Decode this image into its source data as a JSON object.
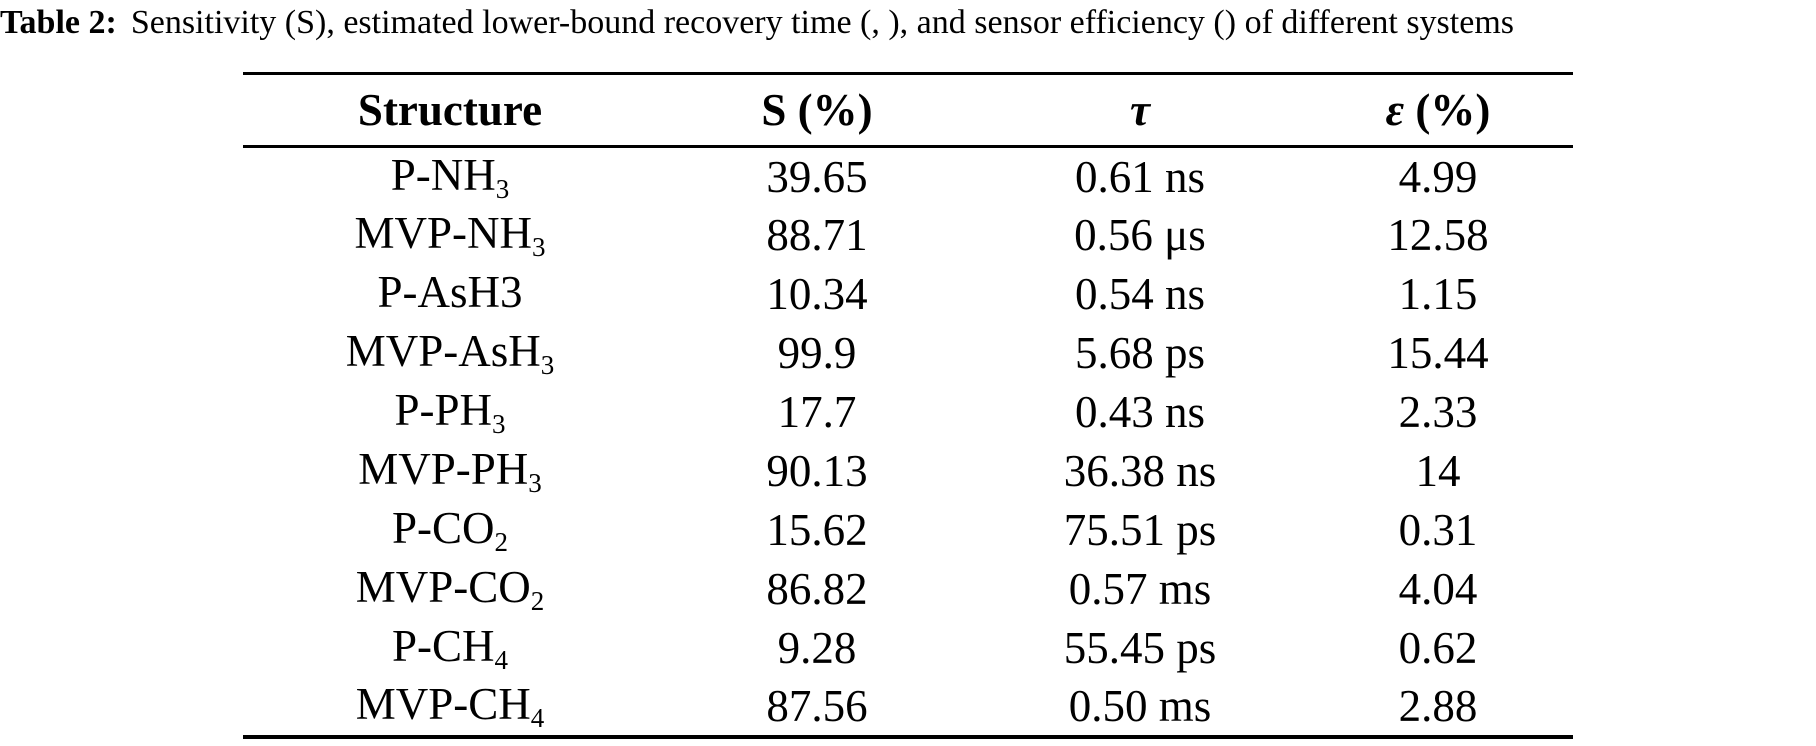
{
  "caption": {
    "label": "Table 2:",
    "text": "Sensitivity (S), estimated lower-bound recovery time (, ), and sensor efficiency () of different systems"
  },
  "table": {
    "headers": {
      "structure": "Structure",
      "s": "S (%)",
      "tau": "τ",
      "eps_symbol": "ε",
      "eps_unit": "(%)"
    },
    "rows": [
      {
        "structure_main": "P-NH",
        "structure_sub": "3",
        "s": "39.65",
        "tau": "0.61 ns",
        "eps": "4.99"
      },
      {
        "structure_main": "MVP-NH",
        "structure_sub": "3",
        "s": "88.71",
        "tau": "0.56 μs",
        "eps": "12.58"
      },
      {
        "structure_main": "P-AsH3",
        "structure_sub": "",
        "s": "10.34",
        "tau": "0.54 ns",
        "eps": "1.15"
      },
      {
        "structure_main": "MVP-AsH",
        "structure_sub": "3",
        "s": "99.9",
        "tau": "5.68 ps",
        "eps": "15.44"
      },
      {
        "structure_main": "P-PH",
        "structure_sub": "3",
        "s": "17.7",
        "tau": "0.43 ns",
        "eps": "2.33"
      },
      {
        "structure_main": "MVP-PH",
        "structure_sub": "3",
        "s": "90.13",
        "tau": "36.38 ns",
        "eps": "14"
      },
      {
        "structure_main": "P-CO",
        "structure_sub": "2",
        "s": "15.62",
        "tau": "75.51 ps",
        "eps": "0.31"
      },
      {
        "structure_main": "MVP-CO",
        "structure_sub": "2",
        "s": "86.82",
        "tau": "0.57 ms",
        "eps": "4.04"
      },
      {
        "structure_main": "P-CH",
        "structure_sub": "4",
        "s": "9.28",
        "tau": "55.45 ps",
        "eps": "0.62"
      },
      {
        "structure_main": "MVP-CH",
        "structure_sub": "4",
        "s": "87.56",
        "tau": "0.50 ms",
        "eps": "2.88"
      }
    ]
  }
}
